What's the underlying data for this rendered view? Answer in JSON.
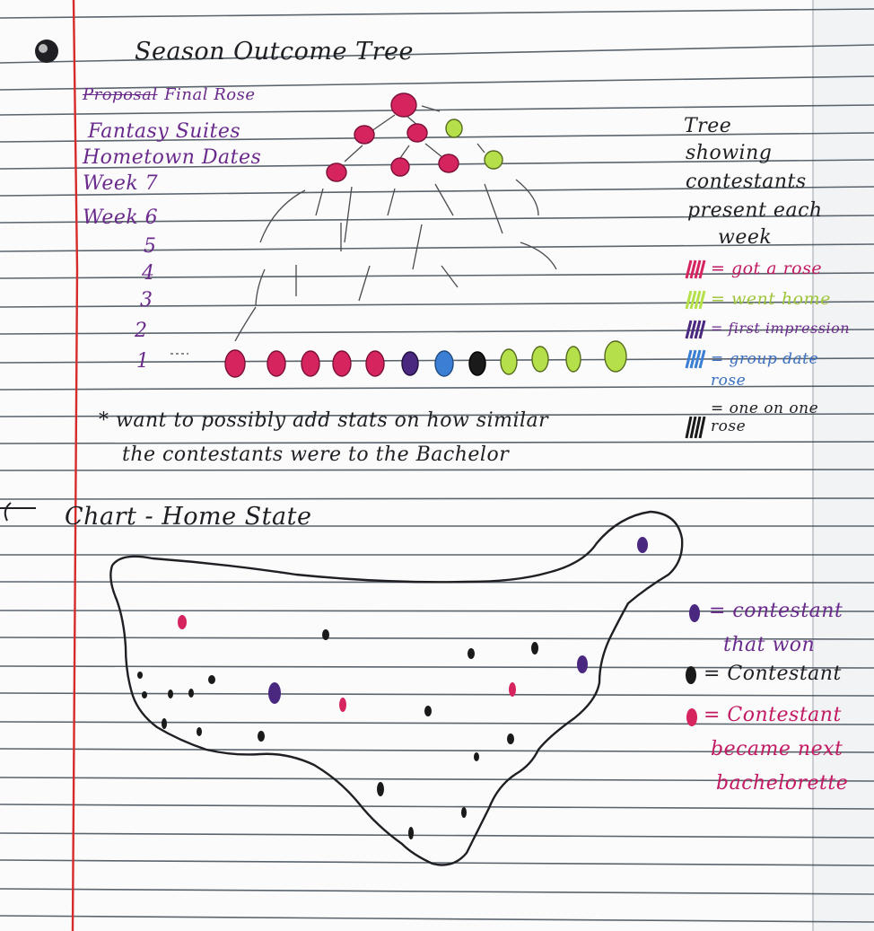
{
  "colors": {
    "rose_pink": "#d6245f",
    "went_home_green": "#b5e04a",
    "first_impression_purple": "#4a2880",
    "group_date_blue": "#3b7fd4",
    "one_on_one_black": "#1a1a1a",
    "margin_red": "#d62b2b",
    "rule_blue_gray": "#3f4a55"
  },
  "tree_section": {
    "title": "Season Outcome Tree",
    "week_labels": {
      "final_rose_crossed": "Proposal",
      "final_rose": "Final Rose",
      "fantasy_suites": "Fantasy Suites",
      "hometown_dates": "Hometown Dates",
      "week7": "Week 7",
      "week6": "Week 6",
      "w5": "5",
      "w4": "4",
      "w3": "3",
      "w2": "2",
      "w1": "1"
    },
    "side_note": [
      "Tree",
      "showing",
      "contestants",
      "present each",
      "week"
    ],
    "legend": [
      {
        "label": "= got a rose",
        "color": "#d6245f"
      },
      {
        "label": "= went home",
        "color": "#b5e04a"
      },
      {
        "label": "= first impression",
        "color": "#4a2880"
      },
      {
        "label": "= group date rose",
        "color": "#3b7fd4"
      },
      {
        "label": "= one on one rose",
        "color": "#1a1a1a"
      }
    ],
    "footnote": [
      "* want to possibly add stats on how similar",
      "the contestants were to the Bachelor"
    ]
  },
  "map_section": {
    "title": "Chart - Home State",
    "legend": [
      {
        "label": "= contestant",
        "label2": "that won",
        "color": "#4a2880"
      },
      {
        "label": "= Contestant",
        "label2": "",
        "color": "#1a1a1a"
      },
      {
        "label": "= Contestant",
        "label2": "became next",
        "label3": "bachelorette",
        "color": "#d6245f"
      }
    ]
  }
}
